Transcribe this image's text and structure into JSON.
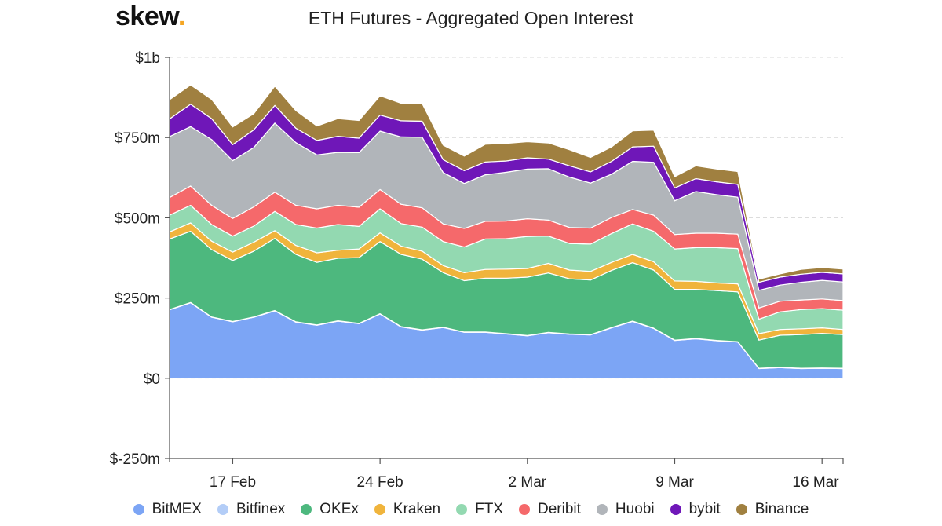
{
  "header": {
    "logo_text": "skew",
    "logo_dot": ".",
    "title": "ETH Futures - Aggregated Open Interest"
  },
  "chart_data": {
    "type": "area",
    "stacked": true,
    "title": "ETH Futures - Aggregated Open Interest",
    "xlabel": "",
    "ylabel": "",
    "ylim": [
      -250,
      1000
    ],
    "yticks": [
      {
        "value": 1000,
        "label": "$1b"
      },
      {
        "value": 750,
        "label": "$750m"
      },
      {
        "value": 500,
        "label": "$500m"
      },
      {
        "value": 250,
        "label": "$250m"
      },
      {
        "value": 0,
        "label": "$0"
      },
      {
        "value": -250,
        "label": "$-250m"
      }
    ],
    "xlim": [
      0,
      25
    ],
    "xticks": [
      {
        "value": 3,
        "label": "17 Feb"
      },
      {
        "value": 10,
        "label": "24 Feb"
      },
      {
        "value": 17,
        "label": "2 Mar"
      },
      {
        "value": 24,
        "label": "9 Mar"
      },
      {
        "value": 31,
        "label": "16 Mar"
      }
    ],
    "x": [
      "14 Feb",
      "15 Feb",
      "16 Feb",
      "17 Feb",
      "18 Feb",
      "19 Feb",
      "20 Feb",
      "21 Feb",
      "22 Feb",
      "23 Feb",
      "24 Feb",
      "25 Feb",
      "26 Feb",
      "27 Feb",
      "28 Feb",
      "29 Feb",
      "1 Mar",
      "2 Mar",
      "3 Mar",
      "4 Mar",
      "5 Mar",
      "6 Mar",
      "7 Mar",
      "8 Mar",
      "9 Mar",
      "10 Mar",
      "11 Mar",
      "12 Mar",
      "13 Mar",
      "14 Mar",
      "15 Mar",
      "16 Mar",
      "17 Mar"
    ],
    "grid": true,
    "legend_position": "bottom",
    "series": [
      {
        "name": "BitMEX",
        "color": "#7ca5f5",
        "values": [
          213,
          235,
          190,
          176,
          190,
          210,
          175,
          165,
          178,
          170,
          200,
          160,
          150,
          158,
          143,
          143,
          138,
          132,
          142,
          137,
          135,
          157,
          177,
          155,
          118,
          123,
          117,
          113,
          30,
          33,
          30,
          31,
          30
        ]
      },
      {
        "name": "Bitfinex",
        "color": "#b3cdf7",
        "values": [
          1,
          1,
          1,
          1,
          1,
          1,
          1,
          1,
          1,
          1,
          1,
          1,
          1,
          1,
          1,
          1,
          1,
          1,
          1,
          1,
          1,
          1,
          1,
          1,
          1,
          1,
          1,
          1,
          1,
          1,
          1,
          1,
          1
        ]
      },
      {
        "name": "OKEx",
        "color": "#4db87e",
        "values": [
          220,
          222,
          210,
          190,
          205,
          225,
          210,
          195,
          195,
          205,
          225,
          225,
          220,
          170,
          160,
          168,
          173,
          182,
          185,
          172,
          170,
          178,
          182,
          181,
          158,
          153,
          155,
          155,
          88,
          100,
          105,
          108,
          105
        ]
      },
      {
        "name": "Kraken",
        "color": "#f0b43c",
        "values": [
          22,
          26,
          26,
          26,
          28,
          24,
          28,
          30,
          25,
          27,
          27,
          26,
          25,
          22,
          25,
          27,
          28,
          27,
          30,
          27,
          27,
          25,
          26,
          26,
          26,
          25,
          24,
          25,
          20,
          18,
          18,
          17,
          16
        ]
      },
      {
        "name": "FTX",
        "color": "#93d9b1",
        "values": [
          52,
          55,
          52,
          50,
          50,
          60,
          65,
          77,
          80,
          70,
          75,
          70,
          75,
          75,
          80,
          95,
          95,
          100,
          85,
          83,
          85,
          90,
          95,
          95,
          100,
          105,
          110,
          110,
          45,
          55,
          60,
          60,
          60
        ]
      },
      {
        "name": "Deribit",
        "color": "#f5696b",
        "values": [
          55,
          60,
          60,
          55,
          60,
          60,
          60,
          60,
          60,
          60,
          60,
          60,
          60,
          55,
          58,
          55,
          55,
          55,
          50,
          50,
          50,
          50,
          45,
          50,
          45,
          45,
          45,
          45,
          35,
          33,
          30,
          30,
          30
        ]
      },
      {
        "name": "Huobi",
        "color": "#b1b5ba",
        "values": [
          190,
          185,
          205,
          180,
          185,
          215,
          195,
          168,
          165,
          170,
          182,
          210,
          220,
          160,
          140,
          145,
          152,
          155,
          160,
          157,
          140,
          135,
          150,
          165,
          105,
          130,
          120,
          115,
          55,
          50,
          55,
          58,
          58
        ]
      },
      {
        "name": "bybit",
        "color": "#6f17b8",
        "values": [
          55,
          70,
          65,
          50,
          55,
          55,
          45,
          45,
          50,
          45,
          50,
          50,
          50,
          40,
          40,
          40,
          35,
          35,
          30,
          35,
          35,
          40,
          45,
          50,
          40,
          40,
          40,
          40,
          25,
          25,
          25,
          25,
          25
        ]
      },
      {
        "name": "Binance",
        "color": "#a08040",
        "values": [
          60,
          60,
          60,
          55,
          50,
          60,
          55,
          45,
          55,
          55,
          60,
          55,
          55,
          45,
          45,
          55,
          55,
          50,
          50,
          50,
          45,
          45,
          50,
          50,
          35,
          40,
          40,
          40,
          10,
          10,
          15,
          15,
          15
        ]
      }
    ]
  }
}
